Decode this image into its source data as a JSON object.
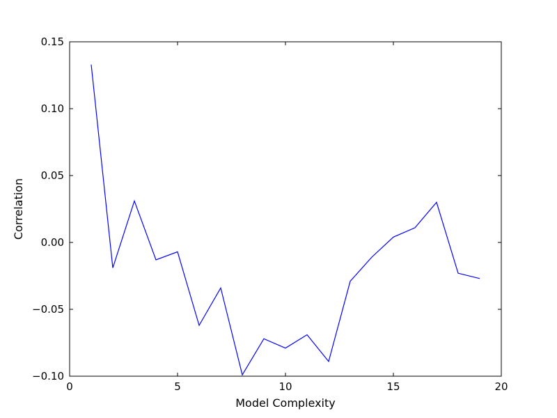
{
  "chart_data": {
    "type": "line",
    "title": "",
    "xlabel": "Model Complexity",
    "ylabel": "Correlation",
    "xlim": [
      0,
      20
    ],
    "ylim": [
      -0.1,
      0.15
    ],
    "x_ticks": [
      0,
      5,
      10,
      15,
      20
    ],
    "x_tick_labels": [
      "0",
      "5",
      "10",
      "15",
      "20"
    ],
    "y_ticks": [
      -0.1,
      -0.05,
      0.0,
      0.05,
      0.1,
      0.15
    ],
    "y_tick_labels": [
      "−0.10",
      "−0.05",
      "0.00",
      "0.05",
      "0.10",
      "0.15"
    ],
    "grid": false,
    "legend": false,
    "series": [
      {
        "color": "#0000ff",
        "x": [
          1,
          2,
          3,
          4,
          5,
          6,
          7,
          8,
          9,
          10,
          11,
          12,
          13,
          14,
          15,
          16,
          17,
          18,
          19
        ],
        "y": [
          0.133,
          -0.019,
          0.031,
          -0.013,
          -0.007,
          -0.062,
          -0.034,
          -0.099,
          -0.072,
          -0.079,
          -0.069,
          -0.089,
          -0.029,
          -0.011,
          0.004,
          0.011,
          0.03,
          -0.023,
          -0.027
        ]
      }
    ]
  }
}
